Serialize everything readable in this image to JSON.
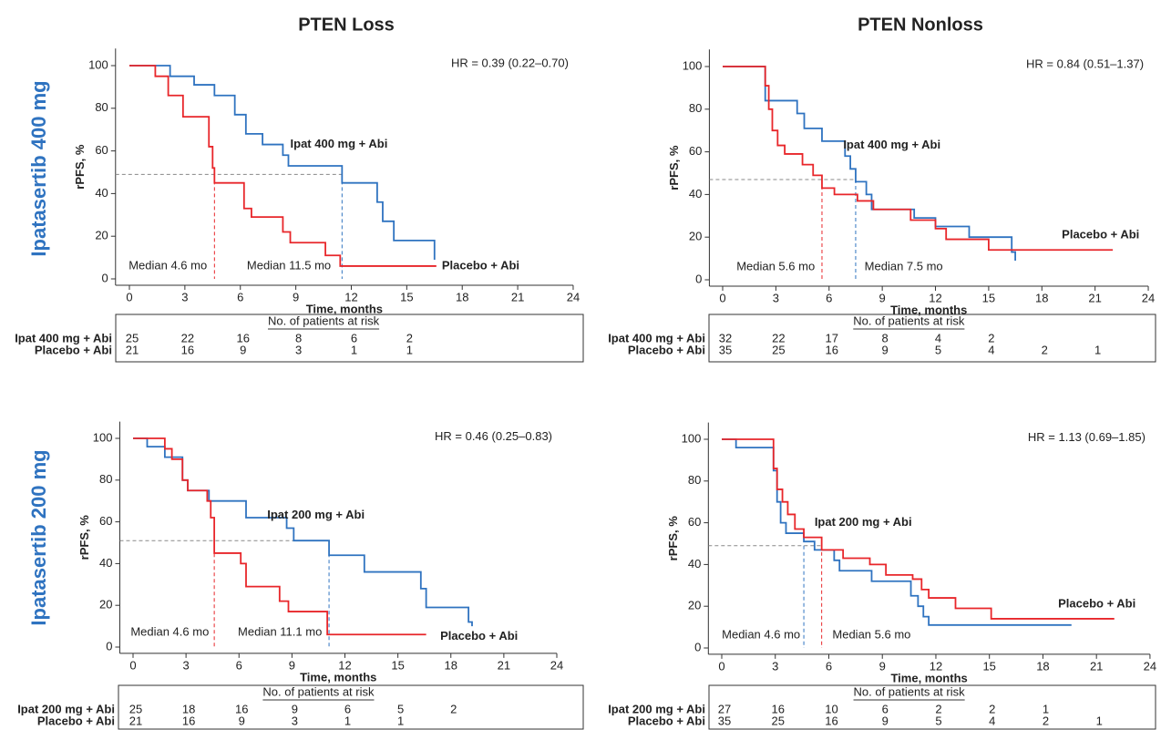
{
  "columns": [
    "PTEN Loss",
    "PTEN Nonloss"
  ],
  "rows": [
    "Ipatasertib 400 mg",
    "Ipatasertib 200 mg"
  ],
  "chart_data": [
    {
      "type": "line",
      "hr": "HR = 0.39 (0.22–0.70)",
      "y_label": "rPFS, %",
      "x_label": "Time, months",
      "xlim": [
        -0.75,
        24
      ],
      "ylim": [
        -3,
        108
      ],
      "xticks": [
        0,
        3,
        6,
        9,
        12,
        15,
        18,
        21,
        24
      ],
      "yticks": [
        0,
        20,
        40,
        60,
        80,
        100
      ],
      "series": [
        {
          "name": "Ipat 400 mg + Abi",
          "color": "#2f73c0",
          "x": [
            0,
            2.2,
            2.2,
            3.5,
            3.5,
            4.6,
            4.6,
            5.7,
            5.7,
            6.3,
            6.3,
            7.2,
            7.2,
            8.3,
            8.3,
            8.6,
            8.6,
            11.5,
            11.5,
            13.4,
            13.4,
            13.7,
            13.7,
            14.3,
            14.3,
            16.5,
            16.5
          ],
          "values": [
            100,
            100,
            95,
            95,
            91,
            91,
            86,
            86,
            77,
            77,
            68,
            68,
            63,
            63,
            58,
            58,
            53,
            53,
            45,
            45,
            36,
            36,
            27,
            27,
            18,
            18,
            9
          ]
        },
        {
          "name": "Placebo + Abi",
          "color": "#e8262a",
          "x": [
            0,
            1.4,
            1.4,
            2.1,
            2.1,
            2.9,
            2.9,
            4.3,
            4.3,
            4.5,
            4.5,
            4.6,
            4.6,
            6.2,
            6.2,
            6.6,
            6.6,
            8.3,
            8.3,
            8.7,
            8.7,
            10.6,
            10.6,
            11.4,
            11.4,
            16.6
          ],
          "values": [
            100,
            100,
            95,
            95,
            86,
            86,
            76,
            76,
            62,
            62,
            52,
            52,
            45,
            45,
            33,
            33,
            29,
            29,
            22,
            22,
            17,
            17,
            11,
            11,
            6,
            6
          ]
        }
      ],
      "median_level": 49,
      "medians": [
        {
          "label": "Median 4.6 mo",
          "value": 4.6,
          "color": "#e8262a"
        },
        {
          "label": "Median 11.5 mo",
          "value": 11.5,
          "color": "#2f73c0"
        }
      ],
      "risk_table": {
        "title": "No. of patients at risk",
        "rows": [
          [
            25,
            22,
            16,
            8,
            6,
            2
          ],
          [
            21,
            16,
            9,
            3,
            1,
            1
          ]
        ]
      }
    },
    {
      "type": "line",
      "hr": "HR = 0.84 (0.51–1.37)",
      "y_label": "rPFS, %",
      "x_label": "Time, months",
      "xlim": [
        -0.75,
        24
      ],
      "ylim": [
        -3,
        108
      ],
      "xticks": [
        0,
        3,
        6,
        9,
        12,
        15,
        18,
        21,
        24
      ],
      "yticks": [
        0,
        20,
        40,
        60,
        80,
        100
      ],
      "series": [
        {
          "name": "Ipat 400 mg + Abi",
          "color": "#2f73c0",
          "x": [
            0,
            2.4,
            2.4,
            4.2,
            4.2,
            4.6,
            4.6,
            5.6,
            5.6,
            6.9,
            6.9,
            7.2,
            7.2,
            7.5,
            7.5,
            8.1,
            8.1,
            8.4,
            8.4,
            10.8,
            10.8,
            12,
            12,
            13.9,
            13.9,
            16.3,
            16.3,
            16.5,
            16.5
          ],
          "values": [
            100,
            100,
            84,
            84,
            78,
            78,
            71,
            71,
            65,
            65,
            58,
            58,
            52,
            52,
            46,
            46,
            40,
            40,
            33,
            33,
            29,
            29,
            25,
            25,
            20,
            20,
            13,
            13,
            9
          ]
        },
        {
          "name": "Placebo + Abi",
          "color": "#e8262a",
          "x": [
            0,
            2.4,
            2.4,
            2.6,
            2.6,
            2.8,
            2.8,
            3.1,
            3.1,
            3.5,
            3.5,
            4.5,
            4.5,
            5.1,
            5.1,
            5.6,
            5.6,
            6.3,
            6.3,
            7.6,
            7.6,
            8.5,
            8.5,
            10.6,
            10.6,
            12,
            12,
            12.6,
            12.6,
            15,
            15,
            22
          ],
          "values": [
            100,
            100,
            91,
            91,
            80,
            80,
            70,
            70,
            63,
            63,
            59,
            59,
            54,
            54,
            49,
            49,
            43,
            43,
            40,
            40,
            37,
            37,
            33,
            33,
            28,
            28,
            24,
            24,
            19,
            19,
            14,
            14
          ]
        }
      ],
      "median_level": 47,
      "medians": [
        {
          "label": "Median 5.6 mo",
          "value": 5.6,
          "color": "#e8262a"
        },
        {
          "label": "Median 7.5 mo",
          "value": 7.5,
          "color": "#2f73c0"
        }
      ],
      "risk_table": {
        "title": "No. of patients at risk",
        "rows": [
          [
            32,
            22,
            17,
            8,
            4,
            2
          ],
          [
            35,
            25,
            16,
            9,
            5,
            4,
            2,
            1
          ]
        ]
      }
    },
    {
      "type": "line",
      "hr": "HR = 0.46 (0.25–0.83)",
      "y_label": "rPFS, %",
      "x_label": "Time, months",
      "xlim": [
        -0.75,
        24
      ],
      "ylim": [
        -3,
        108
      ],
      "xticks": [
        0,
        3,
        6,
        9,
        12,
        15,
        18,
        21,
        24
      ],
      "yticks": [
        0,
        20,
        40,
        60,
        80,
        100
      ],
      "series": [
        {
          "name": "Ipat 200 mg + Abi",
          "color": "#2f73c0",
          "x": [
            0,
            0.8,
            0.8,
            1.8,
            1.8,
            2.8,
            2.8,
            3.1,
            3.1,
            4.3,
            4.3,
            6.4,
            6.4,
            8.7,
            8.7,
            9.1,
            9.1,
            11.1,
            11.1,
            13.1,
            13.1,
            16.3,
            16.3,
            16.6,
            16.6,
            19,
            19,
            19.2,
            19.2
          ],
          "values": [
            100,
            100,
            96,
            96,
            91,
            91,
            80,
            80,
            75,
            75,
            70,
            70,
            62,
            62,
            57,
            57,
            51,
            51,
            44,
            44,
            36,
            36,
            28,
            28,
            19,
            19,
            12,
            12,
            10
          ]
        },
        {
          "name": "Placebo + Abi",
          "color": "#e8262a",
          "x": [
            0,
            1.8,
            1.8,
            2.2,
            2.2,
            2.8,
            2.8,
            3.1,
            3.1,
            4.2,
            4.2,
            4.4,
            4.4,
            4.6,
            4.6,
            6.1,
            6.1,
            6.4,
            6.4,
            8.3,
            8.3,
            8.8,
            8.8,
            11,
            11,
            16.6
          ],
          "values": [
            100,
            100,
            95,
            95,
            90,
            90,
            80,
            80,
            75,
            75,
            70,
            70,
            62,
            62,
            45,
            45,
            40,
            40,
            29,
            29,
            22,
            22,
            17,
            17,
            6,
            6
          ]
        }
      ],
      "median_level": 51,
      "medians": [
        {
          "label": "Median 4.6 mo",
          "value": 4.6,
          "color": "#e8262a"
        },
        {
          "label": "Median 11.1 mo",
          "value": 11.1,
          "color": "#2f73c0"
        }
      ],
      "risk_table": {
        "title": "No. of patients at risk",
        "rows": [
          [
            25,
            18,
            16,
            9,
            6,
            5,
            2
          ],
          [
            21,
            16,
            9,
            3,
            1,
            1
          ]
        ]
      }
    },
    {
      "type": "line",
      "hr": "HR = 1.13 (0.69–1.85)",
      "y_label": "rPFS, %",
      "x_label": "Time, months",
      "xlim": [
        -0.75,
        24
      ],
      "ylim": [
        -3,
        108
      ],
      "xticks": [
        0,
        3,
        6,
        9,
        12,
        15,
        18,
        21,
        24
      ],
      "yticks": [
        0,
        20,
        40,
        60,
        80,
        100
      ],
      "series": [
        {
          "name": "Ipat 200 mg + Abi",
          "color": "#2f73c0",
          "x": [
            0,
            0.8,
            0.8,
            2.9,
            2.9,
            3.1,
            3.1,
            3.3,
            3.3,
            3.6,
            3.6,
            4.6,
            4.6,
            5.2,
            5.2,
            6.3,
            6.3,
            6.6,
            6.6,
            8.4,
            8.4,
            10.6,
            10.6,
            11,
            11,
            11.3,
            11.3,
            11.6,
            11.6,
            19.6
          ],
          "values": [
            100,
            100,
            96,
            96,
            85,
            85,
            70,
            70,
            60,
            60,
            55,
            55,
            51,
            51,
            47,
            47,
            42,
            42,
            37,
            37,
            32,
            32,
            25,
            25,
            20,
            20,
            15,
            15,
            11,
            11
          ]
        },
        {
          "name": "Placebo + Abi",
          "color": "#e8262a",
          "x": [
            0,
            2.9,
            2.9,
            3.1,
            3.1,
            3.4,
            3.4,
            3.7,
            3.7,
            4.1,
            4.1,
            4.6,
            4.6,
            5.6,
            5.6,
            6.8,
            6.8,
            8.3,
            8.3,
            9.2,
            9.2,
            10.7,
            10.7,
            11.2,
            11.2,
            11.6,
            11.6,
            13.1,
            13.1,
            15.1,
            15.1,
            22
          ],
          "values": [
            100,
            100,
            86,
            86,
            76,
            76,
            70,
            70,
            64,
            64,
            57,
            57,
            53,
            53,
            47,
            47,
            43,
            43,
            40,
            40,
            35,
            35,
            33,
            33,
            28,
            28,
            24,
            24,
            19,
            19,
            14,
            14
          ]
        }
      ],
      "median_level": 49,
      "medians": [
        {
          "label": "Median 4.6 mo",
          "value": 4.6,
          "color": "#2f73c0"
        },
        {
          "label": "Median 5.6 mo",
          "value": 5.6,
          "color": "#e8262a"
        }
      ],
      "risk_table": {
        "title": "No. of patients at risk",
        "rows": [
          [
            27,
            16,
            10,
            6,
            2,
            2,
            1
          ],
          [
            35,
            25,
            16,
            9,
            5,
            4,
            2,
            1
          ]
        ]
      }
    }
  ]
}
